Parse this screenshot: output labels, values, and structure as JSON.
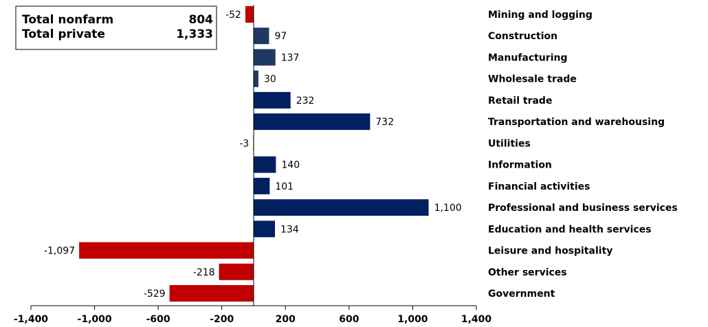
{
  "chart_data": {
    "type": "hbar",
    "categories": [
      "Mining and logging",
      "Construction",
      "Manufacturing",
      "Wholesale trade",
      "Retail trade",
      "Transportation and warehousing",
      "Utilities",
      "Information",
      "Financial activities",
      "Professional and business services",
      "Education and health services",
      "Leisure and hospitality",
      "Other services",
      "Government"
    ],
    "values": [
      -52,
      97,
      137,
      30,
      232,
      732,
      -3,
      140,
      101,
      1100,
      134,
      -1097,
      -218,
      -529
    ],
    "value_labels": [
      "-52",
      "97",
      "137",
      "30",
      "232",
      "732",
      "-3",
      "140",
      "101",
      "1,100",
      "134",
      "-1,097",
      "-218",
      "-529"
    ],
    "colors": [
      "#c00000",
      "#1f3864",
      "#1f3864",
      "#1f3864",
      "#002060",
      "#002060",
      "#c00000",
      "#002060",
      "#002060",
      "#002060",
      "#002060",
      "#c00000",
      "#c00000",
      "#c00000"
    ],
    "xlim": [
      -1400,
      1400
    ],
    "xticks": [
      {
        "value": -1400,
        "label": "-1,400"
      },
      {
        "value": -1000,
        "label": "-1,000"
      },
      -600,
      -200,
      200,
      600,
      {
        "value": 1000,
        "label": "1,000"
      },
      {
        "value": 1400,
        "label": "1,400"
      }
    ],
    "summary": [
      {
        "label": "Total nonfarm",
        "value": "804"
      },
      {
        "label": "Total private",
        "value": "1,333"
      }
    ]
  }
}
